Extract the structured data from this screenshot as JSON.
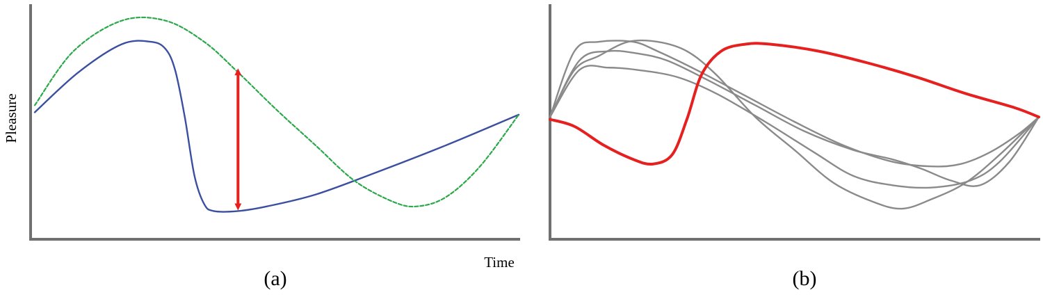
{
  "colors": {
    "axis": "#707070",
    "actual": "#3a4fa0",
    "expected": "#2aa84a",
    "difference": "#e5201f",
    "highlight": "#e5201f",
    "alternatives": "#8a8a8a"
  },
  "panels": {
    "a": {
      "caption": "(a)",
      "ylabel": "Pleasure",
      "xlabel": "Time"
    },
    "b": {
      "caption": "(b)"
    }
  },
  "chart_data": [
    {
      "type": "line",
      "panel": "a",
      "xlabel": "Time",
      "ylabel": "Pleasure",
      "xlim": [
        0,
        100
      ],
      "ylim": [
        0,
        100
      ],
      "grid": false,
      "series": [
        {
          "color": "#3a4fa0",
          "style": "solid",
          "x": [
            0,
            9,
            18,
            24,
            27,
            29,
            31,
            33,
            35,
            37,
            42,
            48,
            58,
            70,
            85,
            100
          ],
          "y": [
            54,
            71,
            83,
            84,
            81,
            72,
            52,
            27,
            15,
            12,
            12,
            14,
            19,
            28,
            40,
            53
          ]
        },
        {
          "color": "#2aa84a",
          "style": "dashed",
          "x": [
            0,
            8,
            18,
            27,
            35,
            42,
            50,
            58,
            66,
            74,
            79,
            85,
            92,
            100
          ],
          "y": [
            57,
            80,
            93,
            93,
            84,
            71,
            55,
            40,
            25,
            16,
            14,
            18,
            31,
            53
          ]
        }
      ],
      "annotations": [
        {
          "type": "double-arrow",
          "x": 42,
          "y_from": 12,
          "y_to": 73,
          "color": "#e5201f"
        }
      ]
    },
    {
      "type": "line",
      "panel": "b",
      "xlim": [
        0,
        100
      ],
      "ylim": [
        0,
        100
      ],
      "grid": false,
      "series": [
        {
          "color": "#e5201f",
          "style": "solid",
          "highlight": true,
          "x": [
            0,
            5,
            11,
            17,
            21,
            25,
            28,
            31,
            35,
            40,
            45,
            55,
            65,
            75,
            85,
            95,
            100
          ],
          "y": [
            51,
            48,
            40,
            34,
            32,
            36,
            51,
            70,
            80,
            83,
            83,
            80,
            75,
            69,
            62,
            56,
            52
          ]
        },
        {
          "color": "#8a8a8a",
          "style": "solid",
          "x": [
            0,
            5,
            10,
            17,
            22,
            30,
            40,
            50,
            60,
            70,
            78,
            84,
            90,
            96,
            100
          ],
          "y": [
            52,
            80,
            84,
            84,
            80,
            72,
            61,
            50,
            40,
            33,
            31,
            32,
            37,
            45,
            52
          ]
        },
        {
          "color": "#8a8a8a",
          "style": "solid",
          "x": [
            0,
            6,
            12,
            18,
            24,
            32,
            42,
            52,
            62,
            70,
            76,
            82,
            88,
            94,
            100
          ],
          "y": [
            52,
            76,
            80,
            79,
            76,
            68,
            57,
            46,
            38,
            34,
            30,
            25,
            23,
            33,
            52
          ]
        },
        {
          "color": "#8a8a8a",
          "style": "solid",
          "x": [
            0,
            5,
            10,
            16,
            22,
            28,
            34,
            42,
            50,
            58,
            66,
            72,
            78,
            85,
            92,
            100
          ],
          "y": [
            52,
            72,
            78,
            84,
            84,
            80,
            70,
            52,
            38,
            24,
            16,
            13,
            17,
            24,
            36,
            52
          ]
        },
        {
          "color": "#8a8a8a",
          "style": "solid",
          "x": [
            0,
            6,
            12,
            18,
            26,
            34,
            44,
            54,
            62,
            70,
            78,
            86,
            92,
            100
          ],
          "y": [
            52,
            72,
            73,
            72,
            69,
            62,
            50,
            37,
            27,
            23,
            22,
            25,
            33,
            52
          ]
        }
      ]
    }
  ]
}
